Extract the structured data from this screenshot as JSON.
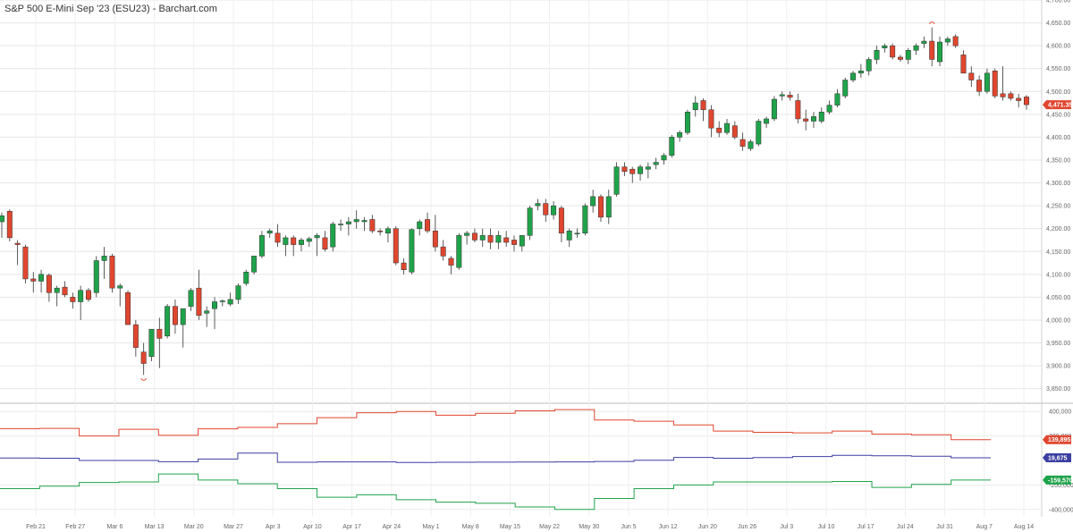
{
  "header": {
    "title": "S&P 500 E-Mini Sep '23 (ESU23) - Barchart.com"
  },
  "chart_data": [
    {
      "type": "candlestick",
      "title": "S&P 500 E-Mini Sep '23 (ESU23) - Barchart.com",
      "ylim": [
        3820,
        4700
      ],
      "y_ticks": [
        "3,850.00",
        "3,900.00",
        "3,950.00",
        "4,000.00",
        "4,050.00",
        "4,100.00",
        "4,150.00",
        "4,200.00",
        "4,250.00",
        "4,300.00",
        "4,350.00",
        "4,400.00",
        "4,450.00",
        "4,500.00",
        "4,550.00",
        "4,600.00",
        "4,650.00",
        "4,700.00"
      ],
      "x_ticks": [
        "Feb 21",
        "Feb 27",
        "Mar 6",
        "Mar 13",
        "Mar 20",
        "Mar 27",
        "Apr 3",
        "Apr 10",
        "Apr 17",
        "Apr 24",
        "May 1",
        "May 8",
        "May 15",
        "May 22",
        "May 30",
        "Jun 5",
        "Jun 12",
        "Jun 20",
        "Jun 26",
        "Jul 3",
        "Jul 10",
        "Jul 17",
        "Jul 24",
        "Jul 31",
        "Aug 7",
        "Aug 14"
      ],
      "last_price": "4,471.35",
      "up_color": "#1fa34a",
      "down_color": "#e0462f",
      "candles": [
        [
          4215,
          4235,
          4180,
          4228
        ],
        [
          4238,
          4242,
          4172,
          4180
        ],
        [
          4168,
          4175,
          4120,
          4165
        ],
        [
          4160,
          4165,
          4080,
          4090
        ],
        [
          4090,
          4105,
          4060,
          4085
        ],
        [
          4085,
          4110,
          4060,
          4100
        ],
        [
          4098,
          4102,
          4040,
          4060
        ],
        [
          4060,
          4075,
          4030,
          4070
        ],
        [
          4072,
          4085,
          4050,
          4055
        ],
        [
          4050,
          4060,
          4025,
          4040
        ],
        [
          4040,
          4075,
          4000,
          4065
        ],
        [
          4065,
          4070,
          4040,
          4045
        ],
        [
          4060,
          4140,
          4050,
          4130
        ],
        [
          4130,
          4160,
          4090,
          4140
        ],
        [
          4140,
          4145,
          4060,
          4070
        ],
        [
          4070,
          4080,
          4030,
          4075
        ],
        [
          4060,
          4065,
          3990,
          3990
        ],
        [
          3990,
          4000,
          3920,
          3940
        ],
        [
          3930,
          3950,
          3880,
          3905
        ],
        [
          3920,
          3980,
          3910,
          3980
        ],
        [
          3980,
          4005,
          3895,
          3960
        ],
        [
          3965,
          4035,
          3960,
          4030
        ],
        [
          4030,
          4045,
          3970,
          3990
        ],
        [
          3990,
          4025,
          3940,
          4025
        ],
        [
          4030,
          4070,
          4020,
          4065
        ],
        [
          4070,
          4110,
          4000,
          4010
        ],
        [
          4015,
          4030,
          3985,
          4020
        ],
        [
          4025,
          4050,
          3980,
          4040
        ],
        [
          4040,
          4045,
          4030,
          4042
        ],
        [
          4035,
          4060,
          4030,
          4045
        ],
        [
          4045,
          4080,
          4035,
          4075
        ],
        [
          4080,
          4110,
          4075,
          4105
        ],
        [
          4105,
          4140,
          4100,
          4140
        ],
        [
          4140,
          4195,
          4135,
          4185
        ],
        [
          4190,
          4200,
          4180,
          4195
        ],
        [
          4190,
          4210,
          4160,
          4170
        ],
        [
          4165,
          4185,
          4140,
          4180
        ],
        [
          4180,
          4185,
          4140,
          4165
        ],
        [
          4165,
          4180,
          4150,
          4175
        ],
        [
          4172,
          4182,
          4160,
          4178
        ],
        [
          4180,
          4190,
          4140,
          4185
        ],
        [
          4180,
          4195,
          4150,
          4155
        ],
        [
          4160,
          4215,
          4150,
          4210
        ],
        [
          4210,
          4220,
          4195,
          4210
        ],
        [
          4210,
          4225,
          4185,
          4215
        ],
        [
          4215,
          4240,
          4200,
          4220
        ],
        [
          4215,
          4225,
          4195,
          4218
        ],
        [
          4220,
          4230,
          4190,
          4195
        ],
        [
          4195,
          4200,
          4185,
          4193
        ],
        [
          4190,
          4205,
          4170,
          4200
        ],
        [
          4200,
          4205,
          4120,
          4125
        ],
        [
          4125,
          4135,
          4100,
          4110
        ],
        [
          4105,
          4200,
          4100,
          4198
        ],
        [
          4200,
          4220,
          4185,
          4215
        ],
        [
          4220,
          4235,
          4190,
          4195
        ],
        [
          4195,
          4230,
          4150,
          4160
        ],
        [
          4160,
          4175,
          4130,
          4140
        ],
        [
          4135,
          4140,
          4100,
          4120
        ],
        [
          4115,
          4190,
          4110,
          4185
        ],
        [
          4185,
          4195,
          4165,
          4190
        ],
        [
          4190,
          4200,
          4170,
          4175
        ],
        [
          4175,
          4200,
          4160,
          4185
        ],
        [
          4185,
          4200,
          4155,
          4170
        ],
        [
          4170,
          4195,
          4155,
          4185
        ],
        [
          4180,
          4195,
          4160,
          4170
        ],
        [
          4175,
          4185,
          4150,
          4165
        ],
        [
          4162,
          4185,
          4150,
          4185
        ],
        [
          4185,
          4250,
          4175,
          4245
        ],
        [
          4250,
          4265,
          4240,
          4255
        ],
        [
          4255,
          4265,
          4215,
          4230
        ],
        [
          4230,
          4260,
          4220,
          4250
        ],
        [
          4245,
          4250,
          4170,
          4190
        ],
        [
          4175,
          4200,
          4160,
          4195
        ],
        [
          4190,
          4200,
          4180,
          4190
        ],
        [
          4190,
          4255,
          4185,
          4250
        ],
        [
          4250,
          4285,
          4235,
          4270
        ],
        [
          4270,
          4275,
          4215,
          4225
        ],
        [
          4225,
          4285,
          4210,
          4270
        ],
        [
          4275,
          4345,
          4270,
          4335
        ],
        [
          4335,
          4345,
          4315,
          4325
        ],
        [
          4330,
          4335,
          4300,
          4320
        ],
        [
          4320,
          4340,
          4305,
          4335
        ],
        [
          4330,
          4345,
          4310,
          4335
        ],
        [
          4340,
          4355,
          4330,
          4345
        ],
        [
          4350,
          4365,
          4340,
          4360
        ],
        [
          4360,
          4405,
          4355,
          4400
        ],
        [
          4400,
          4415,
          4390,
          4410
        ],
        [
          4410,
          4460,
          4405,
          4455
        ],
        [
          4460,
          4490,
          4445,
          4475
        ],
        [
          4480,
          4485,
          4435,
          4460
        ],
        [
          4460,
          4470,
          4400,
          4420
        ],
        [
          4420,
          4435,
          4400,
          4410
        ],
        [
          4410,
          4440,
          4405,
          4430
        ],
        [
          4425,
          4435,
          4395,
          4400
        ],
        [
          4395,
          4410,
          4370,
          4380
        ],
        [
          4375,
          4395,
          4370,
          4390
        ],
        [
          4385,
          4440,
          4380,
          4435
        ],
        [
          4430,
          4445,
          4420,
          4440
        ],
        [
          4440,
          4490,
          4435,
          4483
        ],
        [
          4490,
          4500,
          4480,
          4493
        ],
        [
          4492,
          4500,
          4480,
          4487
        ],
        [
          4480,
          4495,
          4430,
          4440
        ],
        [
          4440,
          4460,
          4415,
          4435
        ],
        [
          4435,
          4455,
          4420,
          4445
        ],
        [
          4435,
          4465,
          4430,
          4455
        ],
        [
          4455,
          4480,
          4450,
          4470
        ],
        [
          4470,
          4505,
          4465,
          4495
        ],
        [
          4490,
          4530,
          4485,
          4525
        ],
        [
          4525,
          4545,
          4520,
          4540
        ],
        [
          4540,
          4560,
          4530,
          4545
        ],
        [
          4545,
          4575,
          4535,
          4570
        ],
        [
          4570,
          4600,
          4560,
          4590
        ],
        [
          4595,
          4605,
          4585,
          4600
        ],
        [
          4600,
          4605,
          4570,
          4575
        ],
        [
          4575,
          4580,
          4565,
          4570
        ],
        [
          4570,
          4595,
          4560,
          4590
        ],
        [
          4590,
          4605,
          4580,
          4600
        ],
        [
          4605,
          4620,
          4595,
          4610
        ],
        [
          4610,
          4640,
          4555,
          4570
        ],
        [
          4565,
          4620,
          4555,
          4608
        ],
        [
          4608,
          4620,
          4600,
          4615
        ],
        [
          4620,
          4625,
          4595,
          4600
        ],
        [
          4580,
          4590,
          4540,
          4540
        ],
        [
          4540,
          4555,
          4510,
          4525
        ],
        [
          4525,
          4535,
          4490,
          4500
        ],
        [
          4500,
          4550,
          4495,
          4540
        ],
        [
          4545,
          4550,
          4485,
          4490
        ],
        [
          4495,
          4555,
          4480,
          4488
        ],
        [
          4495,
          4500,
          4480,
          4485
        ],
        [
          4485,
          4495,
          4465,
          4480
        ],
        [
          4488,
          4492,
          4460,
          4471
        ]
      ],
      "markers": [
        {
          "type": "high",
          "value": 4640
        },
        {
          "type": "low",
          "value": 3880
        }
      ]
    },
    {
      "type": "step-line",
      "ylim": [
        -460000,
        460000
      ],
      "y_ticks": [
        "400,000",
        "200,000",
        "-200,000",
        "-400,000"
      ],
      "series": [
        {
          "color": "#e0462f",
          "last_label": "139,895",
          "values": [
            260000,
            262000,
            200000,
            255000,
            205000,
            258000,
            270000,
            300000,
            350000,
            390000,
            400000,
            370000,
            385000,
            405000,
            415000,
            330000,
            320000,
            290000,
            240000,
            230000,
            225000,
            240000,
            215000,
            210000,
            170000
          ]
        },
        {
          "color": "#3b3fa1",
          "last_label": "19,675",
          "values": [
            20000,
            18000,
            0,
            0,
            -10000,
            12000,
            60000,
            -15000,
            -12000,
            -12000,
            -16000,
            -15000,
            -14000,
            -13000,
            -12000,
            -8000,
            2000,
            25000,
            18000,
            24000,
            32000,
            42000,
            38000,
            35000,
            22000
          ]
        },
        {
          "color": "#1fa34a",
          "last_label": "-159,570",
          "values": [
            -230000,
            -210000,
            -180000,
            -175000,
            -110000,
            -160000,
            -190000,
            -230000,
            -300000,
            -280000,
            -320000,
            -340000,
            -350000,
            -380000,
            -400000,
            -310000,
            -230000,
            -200000,
            -175000,
            -175000,
            -175000,
            -172000,
            -220000,
            -195000,
            -160000
          ]
        }
      ]
    }
  ]
}
